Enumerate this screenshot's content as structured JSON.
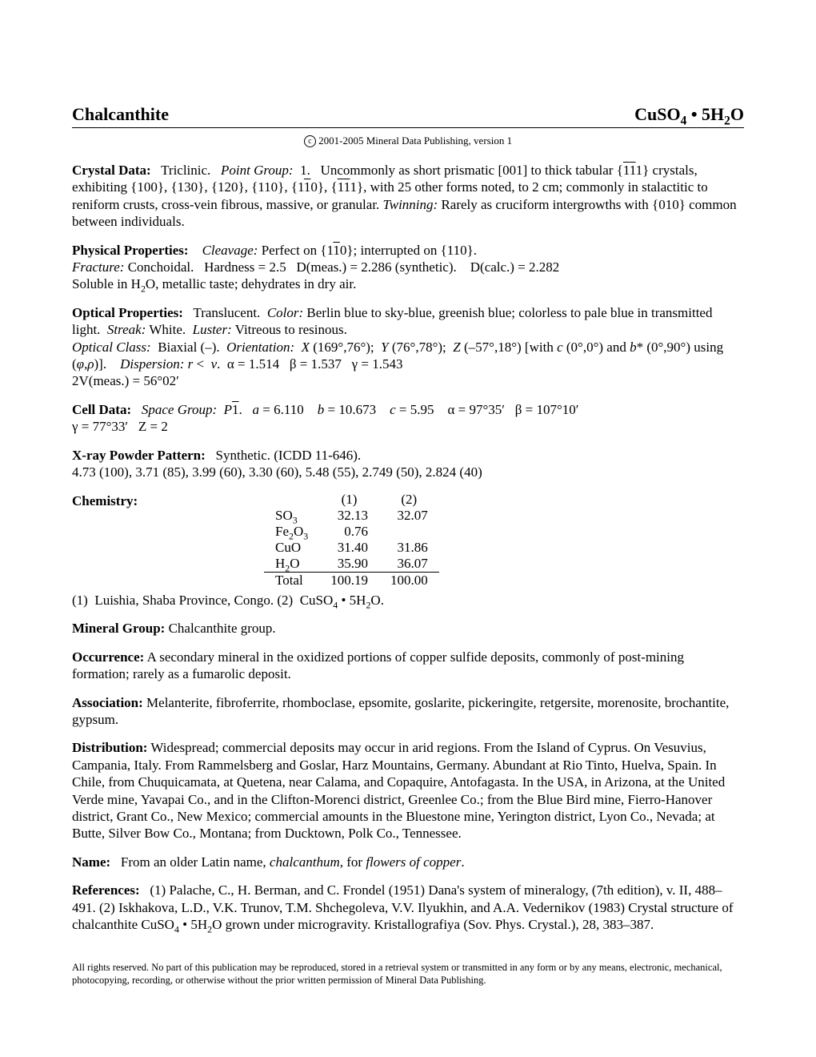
{
  "header": {
    "name": "Chalcanthite",
    "formula_html": "CuSO<sub>4</sub>&nbsp;&bull;&nbsp;5H<sub>2</sub>O"
  },
  "copyright": "2001-2005 Mineral Data Publishing, version 1",
  "crystal_data": {
    "heading": "Crystal Data:",
    "body_html": " &nbsp; Triclinic. &nbsp; <span class='it'>Point Group:</span> &nbsp;1. &nbsp; Uncommonly as short prismatic [001] to thick tabular {<span class='overline'>1</span><span class='overline'>1</span>1} crystals, exhibiting {100}, {130}, {120}, {110}, {1<span class='overline'>1</span>0}, {<span class='overline'>1</span><span class='overline'>1</span>1}, with 25 other forms noted, to 2 cm; commonly in stalactitic to reniform crusts, cross-vein fibrous, massive, or granular. <span class='it'>Twinning:</span> Rarely as cruciform intergrowths with {010} common between individuals."
  },
  "physical": {
    "heading": "Physical Properties:",
    "body_html": " &nbsp;&nbsp; <span class='it'>Cleavage:</span> Perfect on {1<span class='overline'>1</span>0}; interrupted on {110}.<br><span class='it'>Fracture:</span> Conchoidal. &nbsp; Hardness = 2.5 &nbsp; D(meas.) = 2.286 (synthetic). &nbsp;&nbsp; D(calc.) = 2.282<br>Soluble in H<sub>2</sub>O, metallic taste; dehydrates in dry air."
  },
  "optical": {
    "heading": "Optical Properties:",
    "body_html": " &nbsp; Translucent. &nbsp;<span class='it'>Color:</span> Berlin blue to sky-blue, greenish blue; colorless to pale blue in transmitted light. &nbsp;<span class='it'>Streak:</span> White. &nbsp;<span class='it'>Luster:</span> Vitreous to resinous.<br><span class='it'>Optical Class:</span> &nbsp;Biaxial (–). &nbsp;<span class='it'>Orientation:</span> &nbsp;<span class='it'>X</span> (169°,76°); &nbsp;<span class='it'>Y</span> (76°,78°); &nbsp;<span class='it'>Z</span> (–57°,18°) [with <span class='it'>c</span> (0°,0°) and <span class='it'>b</span>* (0°,90°) using (<span class='it'>φ</span>,<span class='it'>ρ</span>)]. &nbsp;&nbsp; <span class='it'>Dispersion:</span> <span class='it'>r</span> &lt; &nbsp;<span class='it'>v</span>. &nbsp;α = 1.514 &nbsp; β = 1.537 &nbsp; γ = 1.543<br>2V(meas.) = 56°02′"
  },
  "cell": {
    "heading": "Cell Data:",
    "body_html": " &nbsp; <span class='it'>Space Group:</span> &nbsp;<span class='it'>P</span><span class='overline'>1</span>. &nbsp; <span class='it'>a</span> = 6.110 &nbsp;&nbsp; <span class='it'>b</span> = 10.673 &nbsp;&nbsp; <span class='it'>c</span> = 5.95 &nbsp;&nbsp; α = 97°35′ &nbsp;&nbsp;β = 107°10′<br>γ = 77°33′ &nbsp;&nbsp;Z = 2"
  },
  "xray": {
    "heading": "X-ray Powder Pattern:",
    "body_html": " &nbsp; Synthetic. (ICDD 11-646).<br>4.73 (100), 3.71 (85), 3.99 (60), 3.30 (60), 5.48 (55), 2.749 (50), 2.824 (40)"
  },
  "chemistry": {
    "heading": "Chemistry:",
    "cols": [
      "",
      "(1)",
      "(2)"
    ],
    "rows": [
      {
        "label_html": "SO<sub>3</sub>",
        "v1": "32.13",
        "v2": "32.07"
      },
      {
        "label_html": "Fe<sub>2</sub>O<sub>3</sub>",
        "v1": "0.76",
        "v2": ""
      },
      {
        "label_html": "CuO",
        "v1": "31.40",
        "v2": "31.86"
      },
      {
        "label_html": "H<sub>2</sub>O",
        "v1": "35.90",
        "v2": "36.07"
      }
    ],
    "total": {
      "label": "Total",
      "v1": "100.19",
      "v2": "100.00"
    },
    "note_html": "(1) &nbsp;Luishia, Shaba Province, Congo. (2) &nbsp;CuSO<sub>4</sub>&nbsp;&bull;&nbsp;5H<sub>2</sub>O."
  },
  "mineral_group": {
    "heading": "Mineral Group:",
    "body": "   Chalcanthite group."
  },
  "occurrence": {
    "heading": "Occurrence:",
    "body": "   A secondary mineral in the oxidized portions of copper sulfide deposits, commonly of post-mining formation; rarely as a fumarolic deposit."
  },
  "association": {
    "heading": "Association:",
    "body": "   Melanterite, fibroferrite, rhomboclase, epsomite, goslarite, pickeringite, retgersite, morenosite, brochantite, gypsum."
  },
  "distribution": {
    "heading": "Distribution:",
    "body": "   Widespread; commercial deposits may occur in arid regions. From the Island of Cyprus. On Vesuvius, Campania, Italy. From Rammelsberg and Goslar, Harz Mountains, Germany. Abundant at Rio Tinto, Huelva, Spain. In Chile, from Chuquicamata, at Quetena, near Calama, and Copaquire, Antofagasta. In the USA, in Arizona, at the United Verde mine, Yavapai Co., and in the Clifton-Morenci district, Greenlee Co.; from the Blue Bird mine, Fierro-Hanover district, Grant Co., New Mexico; commercial amounts in the Bluestone mine, Yerington district, Lyon Co., Nevada; at Butte, Silver Bow Co., Montana; from Ducktown, Polk Co., Tennessee."
  },
  "name_section": {
    "heading": "Name:",
    "body_html": " &nbsp; From an older Latin name, <span class='it'>chalcanthum</span>, for <span class='it'>flowers of copper</span>."
  },
  "references": {
    "heading": "References:",
    "body_html": " &nbsp; (1) Palache, C., H. Berman, and C. Frondel (1951) Dana's system of mineralogy, (7th edition), v. II, 488–491. (2) Iskhakova, L.D., V.K. Trunov, T.M. Shchegoleva, V.V. Ilyukhin, and A.A. Vedernikov (1983) Crystal structure of chalcanthite CuSO<sub>4</sub>&nbsp;&bull;&nbsp;5H<sub>2</sub>O grown under microgravity. Kristallografiya (Sov. Phys. Crystal.), 28, 383–387."
  },
  "footer": "All rights reserved. No part of this publication may be reproduced, stored in a retrieval system or transmitted in any form or by any means, electronic, mechanical, photocopying, recording, or otherwise without the prior written permission of Mineral Data Publishing."
}
